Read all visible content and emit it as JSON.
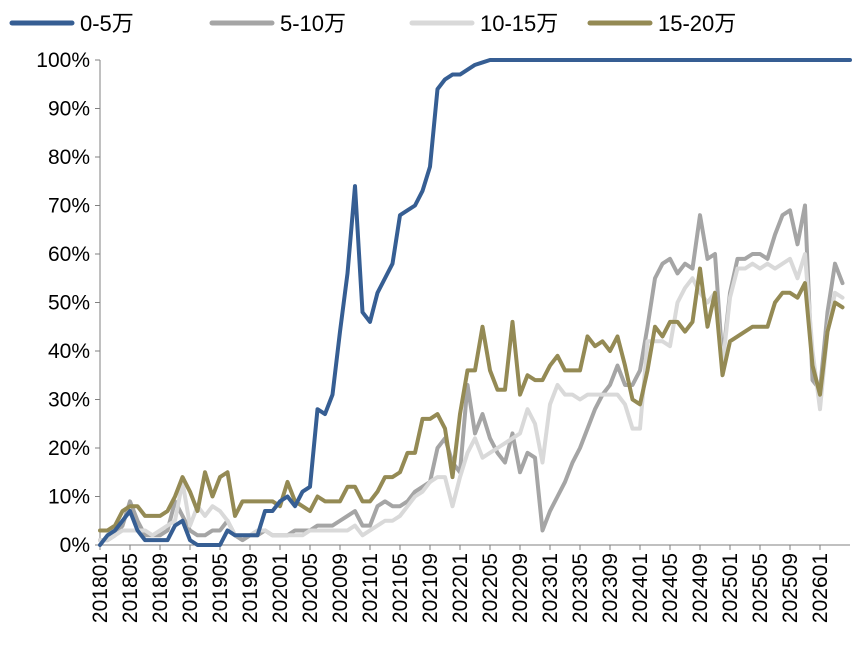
{
  "chart_data": {
    "type": "line",
    "title": "",
    "xlabel": "",
    "ylabel": "",
    "ylim": [
      0,
      1
    ],
    "yticks": [
      "0%",
      "10%",
      "20%",
      "30%",
      "40%",
      "50%",
      "60%",
      "70%",
      "80%",
      "90%",
      "100%"
    ],
    "xticks": [
      "201801",
      "201805",
      "201809",
      "201901",
      "201905",
      "201909",
      "202001",
      "202005",
      "202009",
      "202101",
      "202105",
      "202109",
      "202201",
      "202205",
      "202209",
      "202301",
      "202305",
      "202309",
      "202401",
      "202405",
      "202409",
      "202501",
      "202505",
      "202509",
      "202601"
    ],
    "grid": false,
    "legend_position": "top",
    "start_month": "201801",
    "series": [
      {
        "name": "0-5万",
        "color": "#365E93",
        "values": [
          0.0,
          0.02,
          0.03,
          0.05,
          0.07,
          0.03,
          0.01,
          0.01,
          0.01,
          0.01,
          0.04,
          0.05,
          0.01,
          0.0,
          0.0,
          0.0,
          0.0,
          0.03,
          0.02,
          0.02,
          0.02,
          0.02,
          0.07,
          0.07,
          0.09,
          0.1,
          0.08,
          0.11,
          0.12,
          0.28,
          0.27,
          0.31,
          0.44,
          0.56,
          0.74,
          0.48,
          0.46,
          0.52,
          0.55,
          0.58,
          0.68,
          0.69,
          0.7,
          0.73,
          0.78,
          0.94,
          0.96,
          0.97,
          0.97,
          0.98,
          0.99,
          0.995,
          1.0,
          1.0,
          1.0,
          1.0,
          1.0,
          1.0,
          1.0,
          1.0,
          1.0,
          1.0,
          1.0,
          1.0,
          1.0,
          1.0,
          1.0,
          1.0,
          1.0,
          1.0,
          1.0,
          1.0,
          1.0,
          1.0,
          1.0,
          1.0,
          1.0,
          1.0,
          1.0,
          1.0,
          1.0,
          1.0,
          1.0,
          1.0,
          1.0,
          1.0,
          1.0,
          1.0,
          1.0,
          1.0,
          1.0,
          1.0,
          1.0,
          1.0,
          1.0,
          1.0,
          1.0,
          1.0,
          1.0,
          1.0,
          1.0
        ]
      },
      {
        "name": "5-10万",
        "color": "#A5A5A5",
        "values": [
          0.01,
          0.01,
          0.02,
          0.04,
          0.09,
          0.05,
          0.02,
          0.02,
          0.02,
          0.03,
          0.09,
          0.06,
          0.03,
          0.02,
          0.02,
          0.03,
          0.03,
          0.05,
          0.02,
          0.01,
          0.02,
          0.02,
          0.03,
          0.02,
          0.02,
          0.02,
          0.03,
          0.03,
          0.03,
          0.04,
          0.04,
          0.04,
          0.05,
          0.06,
          0.07,
          0.04,
          0.04,
          0.08,
          0.09,
          0.08,
          0.08,
          0.09,
          0.11,
          0.12,
          0.13,
          0.2,
          0.22,
          0.17,
          0.15,
          0.33,
          0.23,
          0.27,
          0.22,
          0.19,
          0.17,
          0.23,
          0.15,
          0.19,
          0.18,
          0.03,
          0.07,
          0.1,
          0.13,
          0.17,
          0.2,
          0.24,
          0.28,
          0.31,
          0.33,
          0.37,
          0.33,
          0.33,
          0.36,
          0.45,
          0.55,
          0.58,
          0.59,
          0.56,
          0.58,
          0.57,
          0.68,
          0.59,
          0.6,
          0.38,
          0.52,
          0.59,
          0.59,
          0.6,
          0.6,
          0.59,
          0.64,
          0.68,
          0.69,
          0.62,
          0.7,
          0.34,
          0.32,
          0.48,
          0.58,
          0.54
        ]
      },
      {
        "name": "10-15万",
        "color": "#D9D9D9",
        "values": [
          0.01,
          0.01,
          0.02,
          0.03,
          0.03,
          0.03,
          0.03,
          0.02,
          0.03,
          0.04,
          0.05,
          0.13,
          0.04,
          0.08,
          0.06,
          0.08,
          0.07,
          0.05,
          0.02,
          0.02,
          0.02,
          0.03,
          0.03,
          0.02,
          0.02,
          0.02,
          0.02,
          0.02,
          0.03,
          0.03,
          0.03,
          0.03,
          0.03,
          0.03,
          0.04,
          0.02,
          0.03,
          0.04,
          0.05,
          0.05,
          0.06,
          0.08,
          0.1,
          0.11,
          0.13,
          0.14,
          0.14,
          0.08,
          0.14,
          0.19,
          0.22,
          0.18,
          0.19,
          0.2,
          0.21,
          0.22,
          0.23,
          0.28,
          0.25,
          0.17,
          0.29,
          0.33,
          0.31,
          0.31,
          0.3,
          0.31,
          0.31,
          0.31,
          0.31,
          0.31,
          0.29,
          0.24,
          0.24,
          0.42,
          0.42,
          0.42,
          0.41,
          0.5,
          0.53,
          0.55,
          0.52,
          0.5,
          0.52,
          0.37,
          0.51,
          0.57,
          0.57,
          0.58,
          0.57,
          0.58,
          0.57,
          0.58,
          0.59,
          0.55,
          0.6,
          0.4,
          0.28,
          0.44,
          0.52,
          0.51
        ]
      },
      {
        "name": "15-20万",
        "color": "#948A54",
        "values": [
          0.03,
          0.03,
          0.04,
          0.07,
          0.08,
          0.08,
          0.06,
          0.06,
          0.06,
          0.07,
          0.1,
          0.14,
          0.11,
          0.07,
          0.15,
          0.1,
          0.14,
          0.15,
          0.06,
          0.09,
          0.09,
          0.09,
          0.09,
          0.09,
          0.08,
          0.13,
          0.09,
          0.08,
          0.07,
          0.1,
          0.09,
          0.09,
          0.09,
          0.12,
          0.12,
          0.09,
          0.09,
          0.11,
          0.14,
          0.14,
          0.15,
          0.19,
          0.19,
          0.26,
          0.26,
          0.27,
          0.24,
          0.14,
          0.27,
          0.36,
          0.36,
          0.45,
          0.36,
          0.32,
          0.32,
          0.46,
          0.31,
          0.35,
          0.34,
          0.34,
          0.37,
          0.39,
          0.36,
          0.36,
          0.36,
          0.43,
          0.41,
          0.42,
          0.4,
          0.43,
          0.37,
          0.3,
          0.29,
          0.36,
          0.45,
          0.43,
          0.46,
          0.46,
          0.44,
          0.46,
          0.57,
          0.45,
          0.52,
          0.35,
          0.42,
          0.43,
          0.44,
          0.45,
          0.45,
          0.45,
          0.5,
          0.52,
          0.52,
          0.51,
          0.54,
          0.37,
          0.31,
          0.44,
          0.5,
          0.49
        ]
      }
    ]
  }
}
